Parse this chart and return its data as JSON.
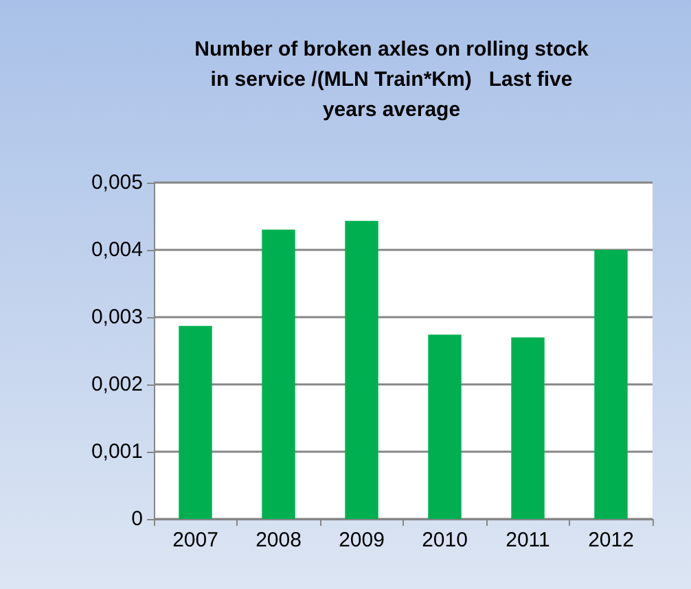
{
  "chart_data": {
    "type": "bar",
    "title": "Number of broken axles on rolling stock\nin service /(MLN Train*Km)   Last five\nyears average",
    "categories": [
      "2007",
      "2008",
      "2009",
      "2010",
      "2011",
      "2012"
    ],
    "values": [
      0.00287,
      0.0043,
      0.00443,
      0.00274,
      0.0027,
      0.004
    ],
    "color": "#00b050",
    "ylim": [
      0,
      0.005
    ],
    "yticks": [
      {
        "value": 0,
        "label": "0"
      },
      {
        "value": 0.001,
        "label": "0,001"
      },
      {
        "value": 0.002,
        "label": "0,002"
      },
      {
        "value": 0.003,
        "label": "0,003"
      },
      {
        "value": 0.004,
        "label": "0,004"
      },
      {
        "value": 0.005,
        "label": "0,005"
      }
    ],
    "grid": "y"
  }
}
